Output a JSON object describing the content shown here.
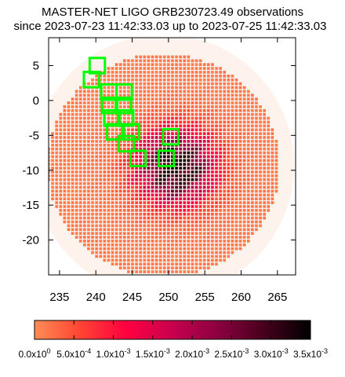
{
  "chart_data": {
    "type": "heatmap",
    "title_line1": "MASTER-NET LIGO GRB230723.49 observations",
    "title_line2": "since 2023-07-23 11:42:33.03 up to 2023-07-25 11:42:33.03",
    "xlim": [
      233.5,
      267.5
    ],
    "ylim": [
      -25,
      9
    ],
    "xticks": [
      235,
      240,
      245,
      250,
      255,
      260,
      265
    ],
    "xtick_labels": [
      "235",
      "240",
      "245",
      "250",
      "255",
      "260",
      "265"
    ],
    "yticks": [
      5,
      0,
      -5,
      -10,
      -15,
      -20
    ],
    "ytick_labels": [
      "5",
      "0",
      "-5",
      "-10",
      "-15",
      "-20"
    ],
    "probability_region": {
      "center": [
        249.3,
        -9.3
      ],
      "radius_deg": 16.0,
      "peak_center": [
        251.0,
        -9.5
      ],
      "peak_value": 0.0034
    },
    "observed_fields": [
      {
        "ra": 240.2,
        "dec": 5.0
      },
      {
        "ra": 239.4,
        "dec": 3.0
      },
      {
        "ra": 241.8,
        "dec": 1.2
      },
      {
        "ra": 243.9,
        "dec": 1.2
      },
      {
        "ra": 241.9,
        "dec": -0.7
      },
      {
        "ra": 243.8,
        "dec": -0.7
      },
      {
        "ra": 242.2,
        "dec": -2.5
      },
      {
        "ra": 244.1,
        "dec": -2.5
      },
      {
        "ra": 242.6,
        "dec": -4.5
      },
      {
        "ra": 244.9,
        "dec": -4.5
      },
      {
        "ra": 244.2,
        "dec": -6.2
      },
      {
        "ra": 250.3,
        "dec": -5.2
      },
      {
        "ra": 245.8,
        "dec": -8.3
      },
      {
        "ra": 249.7,
        "dec": -8.3
      }
    ],
    "field_color": "#00ff00",
    "colorbar": {
      "range": [
        0,
        0.0035
      ],
      "ticks": [
        "0.0x10^0",
        "5.0x10^-4",
        "1.0x10^-3",
        "1.5x10^-3",
        "2.0x10^-3",
        "2.5x10^-3",
        "3.0x10^-3",
        "3.5x10^-3"
      ],
      "colors": [
        "#ff8c55",
        "#ff4433",
        "#ff0040",
        "#c8004e",
        "#8a0040",
        "#46001c",
        "#000000"
      ]
    }
  }
}
